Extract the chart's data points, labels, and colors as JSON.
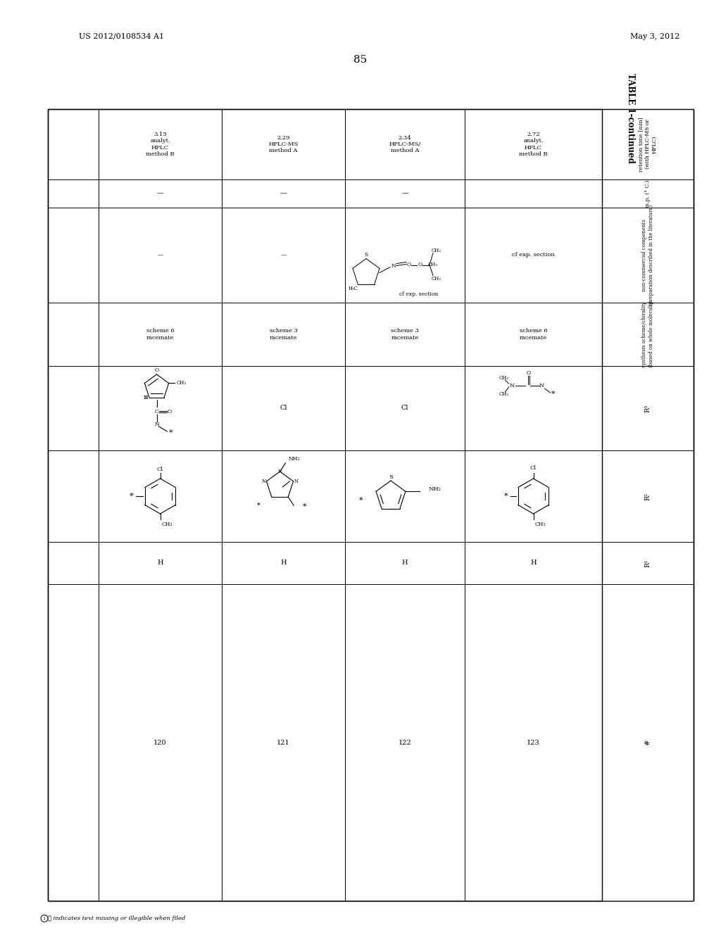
{
  "patent_number": "US 2012/0108534 A1",
  "patent_date": "May 3, 2012",
  "page_number": "85",
  "title": "TABLE 1-continued",
  "background_color": "#ffffff",
  "rows": [
    {
      "num": "120",
      "R1": "H",
      "synthesis": "scheme 6\nracemate",
      "mp": "—",
      "retention": "3.15\nanalyt.\nHPLC\nmethod B"
    },
    {
      "num": "121",
      "R1": "H",
      "synthesis": "scheme 3\nracemate",
      "mp": "—",
      "retention": "2.29\nHPLC-MS\nmethod A"
    },
    {
      "num": "122",
      "R1": "H",
      "synthesis": "scheme 3\nracemate",
      "mp": "—",
      "retention": "2.34\nHPLC-MS/\nmethod A"
    },
    {
      "num": "123",
      "R1": "H",
      "synthesis": "scheme 6\nracemate",
      "mp": "",
      "retention": "2.72\nanalyt.\nHPLC\nmethod B"
    }
  ],
  "col_headers": [
    "#",
    "R¹",
    "R²",
    "R³",
    "synthesis scheme/chirality\n(based on whole molecule)",
    "non-commercial components\n(preparation described in the literature)",
    "m.p. (° C.)",
    "retention time [min]\n(with HPLC-MS or\nHPLC)"
  ],
  "footer": "ⓘ indicates text missing or illegible when filed"
}
